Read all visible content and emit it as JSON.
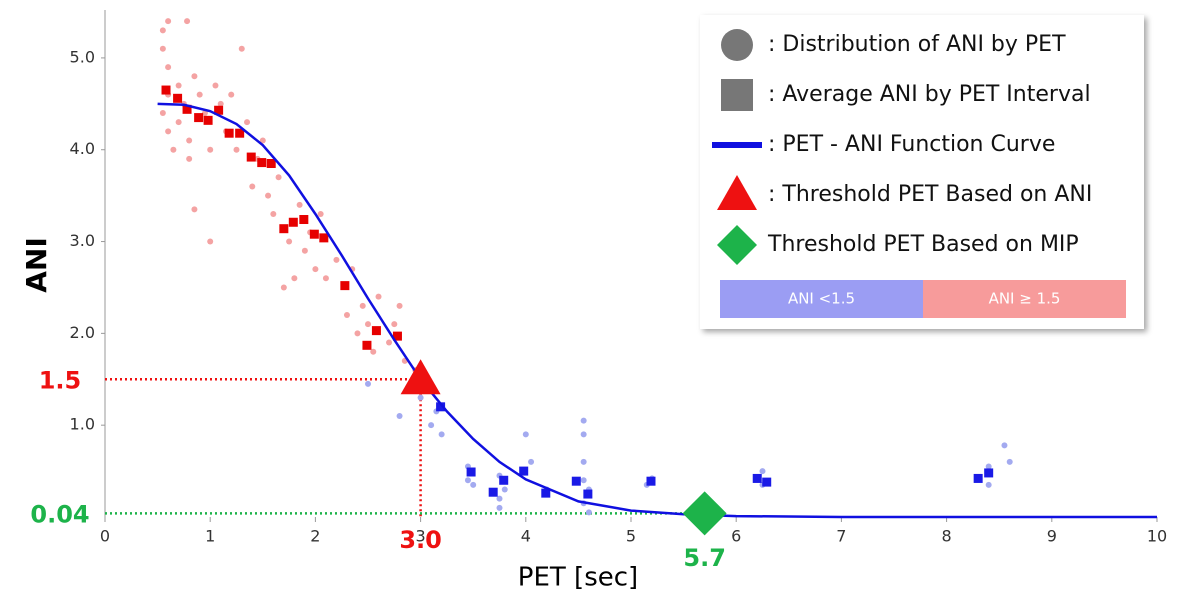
{
  "chart_data": {
    "type": "scatter",
    "x_label": "PET [sec]",
    "y_label": "ANI",
    "xlim": [
      0,
      10
    ],
    "ylim": [
      0,
      5.5
    ],
    "xticks": [
      0,
      1,
      2,
      3,
      4,
      5,
      6,
      7,
      8,
      9,
      10
    ],
    "yticks": [
      {
        "value": 1,
        "label": "1.0"
      },
      {
        "value": 2,
        "label": "2.0"
      },
      {
        "value": 3,
        "label": "3.0"
      },
      {
        "value": 4,
        "label": "4.0"
      },
      {
        "value": 5,
        "label": "5.0"
      }
    ],
    "series": [
      {
        "kind": "points",
        "marker": "circle",
        "color": "#f4a3a3",
        "x": [
          0.55,
          0.55,
          0.6,
          0.6,
          0.55,
          0.6,
          0.65,
          0.7,
          0.7,
          0.75,
          0.8,
          0.8,
          0.85,
          0.85,
          0.9,
          0.95,
          1.0,
          1.0,
          1.05,
          1.1,
          1.15,
          1.2,
          1.25,
          1.3,
          1.35,
          1.4,
          1.45,
          1.5,
          1.55,
          1.6,
          1.65,
          1.7,
          1.75,
          1.8,
          1.85,
          1.9,
          1.95,
          2.0,
          2.05,
          2.1,
          2.2,
          2.3,
          2.35,
          2.4,
          2.45,
          2.5,
          2.55,
          2.6,
          2.7,
          2.75,
          2.8,
          2.85,
          2.95,
          0.6,
          0.78
        ],
        "values": [
          5.3,
          5.1,
          4.9,
          4.6,
          4.4,
          4.2,
          4.0,
          4.7,
          4.3,
          4.5,
          4.1,
          3.9,
          4.8,
          3.35,
          4.6,
          4.4,
          3.0,
          4.0,
          4.7,
          4.5,
          4.2,
          4.6,
          4.0,
          5.1,
          4.3,
          3.6,
          3.9,
          4.1,
          3.5,
          3.3,
          3.7,
          2.5,
          3.0,
          2.6,
          3.4,
          2.9,
          3.1,
          2.7,
          3.3,
          2.6,
          2.8,
          2.2,
          2.7,
          2.0,
          2.3,
          2.1,
          1.8,
          2.4,
          1.9,
          2.1,
          2.3,
          1.7,
          1.6,
          5.4,
          5.4
        ]
      },
      {
        "kind": "points",
        "marker": "circle",
        "color": "#a3aaf0",
        "x": [
          2.5,
          2.8,
          3.0,
          3.1,
          3.15,
          3.2,
          3.45,
          3.45,
          3.5,
          3.75,
          3.75,
          3.75,
          3.8,
          4.0,
          4.05,
          4.2,
          4.55,
          4.55,
          4.55,
          4.55,
          4.55,
          4.6,
          4.6,
          5.15,
          5.2,
          6.25,
          6.25,
          8.4,
          8.4,
          8.55,
          8.6
        ],
        "values": [
          1.45,
          1.1,
          1.3,
          1.0,
          1.15,
          0.9,
          0.55,
          0.4,
          0.35,
          0.45,
          0.2,
          0.1,
          0.3,
          0.9,
          0.6,
          0.3,
          1.05,
          0.9,
          0.6,
          0.4,
          0.15,
          0.05,
          0.3,
          0.35,
          0.42,
          0.5,
          0.35,
          0.55,
          0.35,
          0.78,
          0.6
        ]
      },
      {
        "kind": "points",
        "marker": "square",
        "color": "#e60000",
        "x": [
          0.58,
          0.69,
          0.78,
          0.89,
          0.98,
          1.08,
          1.18,
          1.28,
          1.39,
          1.49,
          1.58,
          1.7,
          1.79,
          1.89,
          1.99,
          2.08,
          2.28,
          2.49,
          2.58,
          2.78
        ],
        "values": [
          4.65,
          4.56,
          4.44,
          4.35,
          4.32,
          4.43,
          4.18,
          4.18,
          3.92,
          3.86,
          3.85,
          3.14,
          3.21,
          3.24,
          3.08,
          3.04,
          2.52,
          1.87,
          2.03,
          1.97
        ]
      },
      {
        "kind": "points",
        "marker": "square",
        "color": "#1a1ae6",
        "x": [
          3.19,
          3.48,
          3.69,
          3.79,
          3.98,
          4.19,
          4.48,
          4.59,
          5.19,
          6.2,
          6.29,
          8.3,
          8.4
        ],
        "values": [
          1.2,
          0.49,
          0.27,
          0.4,
          0.5,
          0.26,
          0.39,
          0.25,
          0.39,
          0.42,
          0.38,
          0.42,
          0.48
        ]
      },
      {
        "kind": "line",
        "color": "#1010e0",
        "x": [
          0.5,
          0.75,
          1,
          1.25,
          1.5,
          1.75,
          2,
          2.25,
          2.5,
          2.75,
          3,
          3.25,
          3.5,
          3.75,
          4,
          4.5,
          5,
          5.5,
          6,
          7,
          8,
          10
        ],
        "values": [
          4.5,
          4.49,
          4.42,
          4.28,
          4.05,
          3.72,
          3.3,
          2.85,
          2.38,
          1.93,
          1.5,
          1.15,
          0.85,
          0.6,
          0.41,
          0.17,
          0.07,
          0.03,
          0.01,
          0,
          0,
          0
        ]
      }
    ],
    "thresholds": [
      {
        "marker": "triangle",
        "color": "#ee1111",
        "x": {
          "value": 3,
          "label": "3.0"
        },
        "y": 1.5
      },
      {
        "marker": "diamond",
        "color": "#1db34a",
        "x": 5.7,
        "y": 0.04
      }
    ],
    "legend": [
      {
        "label": ": Distribution of ANI by PET",
        "marker": "circle",
        "color": "#777777"
      },
      {
        "label": ": Average ANI by PET Interval",
        "marker": "square",
        "color": "#777777"
      },
      {
        "label": ": PET - ANI Function Curve",
        "marker": "line",
        "color": "#1010e0"
      },
      {
        "label": ": Threshold PET Based on ANI",
        "marker": "triangle",
        "color": "#ee1111"
      },
      {
        "label": "Threshold PET Based on MIP",
        "marker": "diamond",
        "color": "#1db34a"
      }
    ],
    "colorbar": [
      {
        "label": "ANI <1.5",
        "color": "#9b9df3"
      },
      {
        "label": "ANI ≥ 1.5",
        "color": "#f79b9b"
      }
    ]
  }
}
